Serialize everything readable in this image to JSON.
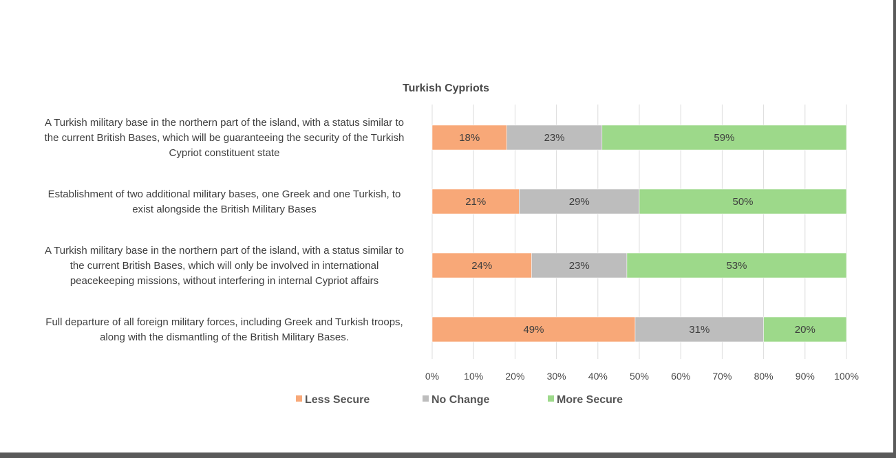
{
  "chart_data": {
    "type": "bar",
    "orientation": "horizontal",
    "stacked": true,
    "percent": true,
    "title": "Turkish Cypriots",
    "categories": [
      [
        "A Turkish military base in the northern part of the island, with a status similar to",
        "the current British Bases, which will be guaranteeing the security of the Turkish",
        "Cypriot constituent state"
      ],
      [
        "Establishment of two additional military bases, one Greek and one Turkish, to",
        "exist alongside the British Military Bases"
      ],
      [
        "A Turkish military base in the northern part of the island, with a status similar to",
        "the current British Bases, which will only be involved in international",
        "peacekeeping missions, without interfering in internal Cypriot affairs"
      ],
      [
        "Full departure of all foreign military forces, including Greek and Turkish troops,",
        "along with the dismantling of the British Military Bases."
      ]
    ],
    "series": [
      {
        "name": "Less Secure",
        "color": "#f8a878",
        "values": [
          18,
          21,
          24,
          49
        ],
        "labels": [
          "18%",
          "21%",
          "24%",
          "49%"
        ]
      },
      {
        "name": "No Change",
        "color": "#bdbdbd",
        "values": [
          23,
          29,
          23,
          31
        ],
        "labels": [
          "23%",
          "29%",
          "23%",
          "31%"
        ]
      },
      {
        "name": "More Secure",
        "color": "#9dd98a",
        "values": [
          59,
          50,
          53,
          20
        ],
        "labels": [
          "59%",
          "50%",
          "53%",
          "20%"
        ]
      }
    ],
    "xlim": [
      0,
      100
    ],
    "xticks": [
      "0%",
      "10%",
      "20%",
      "30%",
      "40%",
      "50%",
      "60%",
      "70%",
      "80%",
      "90%",
      "100%"
    ],
    "grid": true,
    "legend_position": "bottom"
  }
}
